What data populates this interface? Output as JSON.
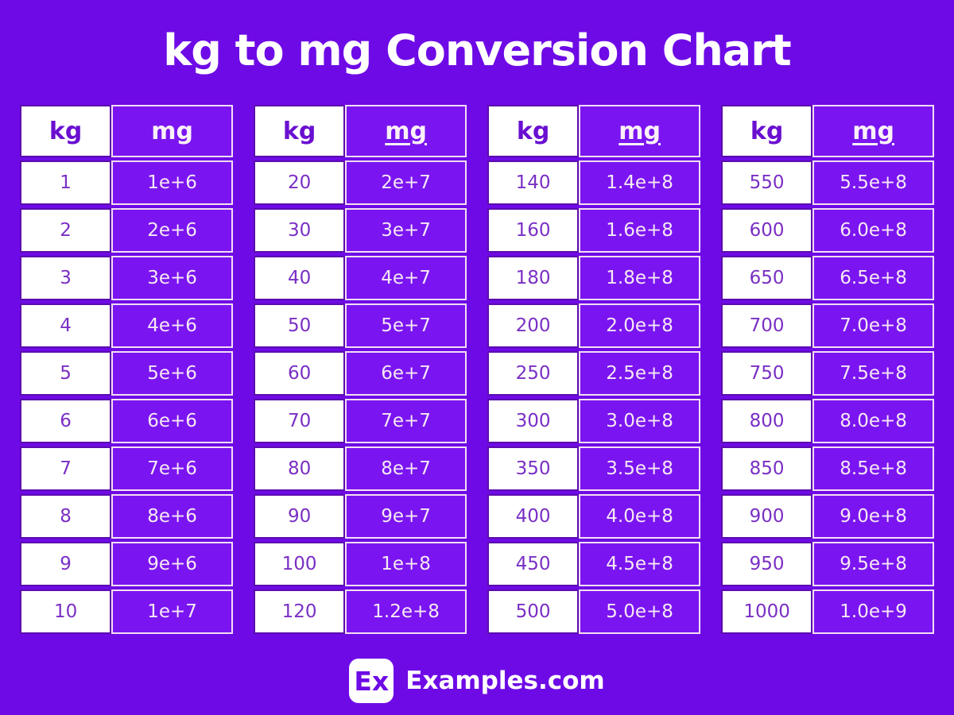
{
  "title": "kg to mg Conversion Chart",
  "colors": {
    "background": "#6E0AE6",
    "mg_cell_background": "#7A15F1",
    "kg_cell_background": "#FFFFFF",
    "kg_text": "#7A2FC4",
    "mg_text": "#F7E8F3",
    "kg_cell_border": "#5C0CAE",
    "mg_cell_border": "#F5DEF2",
    "title_text": "#FFFFFF"
  },
  "chart_data": [
    {
      "type": "table",
      "columns": [
        "kg",
        "mg"
      ],
      "mg_header_underlined": false,
      "rows": [
        [
          "1",
          "1e+6"
        ],
        [
          "2",
          "2e+6"
        ],
        [
          "3",
          "3e+6"
        ],
        [
          "4",
          "4e+6"
        ],
        [
          "5",
          "5e+6"
        ],
        [
          "6",
          "6e+6"
        ],
        [
          "7",
          "7e+6"
        ],
        [
          "8",
          "8e+6"
        ],
        [
          "9",
          "9e+6"
        ],
        [
          "10",
          "1e+7"
        ]
      ]
    },
    {
      "type": "table",
      "columns": [
        "kg",
        "mg"
      ],
      "mg_header_underlined": true,
      "rows": [
        [
          "20",
          "2e+7"
        ],
        [
          "30",
          "3e+7"
        ],
        [
          "40",
          "4e+7"
        ],
        [
          "50",
          "5e+7"
        ],
        [
          "60",
          "6e+7"
        ],
        [
          "70",
          "7e+7"
        ],
        [
          "80",
          "8e+7"
        ],
        [
          "90",
          "9e+7"
        ],
        [
          "100",
          "1e+8"
        ],
        [
          "120",
          "1.2e+8"
        ]
      ]
    },
    {
      "type": "table",
      "columns": [
        "kg",
        "mg"
      ],
      "mg_header_underlined": true,
      "rows": [
        [
          "140",
          "1.4e+8"
        ],
        [
          "160",
          "1.6e+8"
        ],
        [
          "180",
          "1.8e+8"
        ],
        [
          "200",
          "2.0e+8"
        ],
        [
          "250",
          "2.5e+8"
        ],
        [
          "300",
          "3.0e+8"
        ],
        [
          "350",
          "3.5e+8"
        ],
        [
          "400",
          "4.0e+8"
        ],
        [
          "450",
          "4.5e+8"
        ],
        [
          "500",
          "5.0e+8"
        ]
      ]
    },
    {
      "type": "table",
      "columns": [
        "kg",
        "mg"
      ],
      "mg_header_underlined": true,
      "rows": [
        [
          "550",
          "5.5e+8"
        ],
        [
          "600",
          "6.0e+8"
        ],
        [
          "650",
          "6.5e+8"
        ],
        [
          "700",
          "7.0e+8"
        ],
        [
          "750",
          "7.5e+8"
        ],
        [
          "800",
          "8.0e+8"
        ],
        [
          "850",
          "8.5e+8"
        ],
        [
          "900",
          "9.0e+8"
        ],
        [
          "950",
          "9.5e+8"
        ],
        [
          "1000",
          "1.0e+9"
        ]
      ]
    }
  ],
  "footer": {
    "logo_text": "Ex",
    "site_name": "Examples.com"
  }
}
